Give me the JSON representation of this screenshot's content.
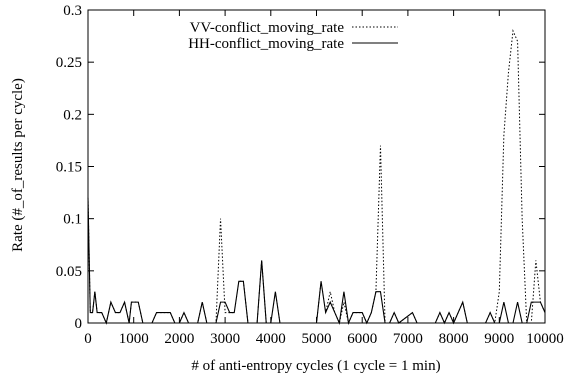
{
  "chart_data": {
    "type": "line",
    "title": "",
    "xlabel": "# of anti-entropy cycles (1 cycle = 1 min)",
    "ylabel": "Rate (#_of_results per cycle)",
    "xlim": [
      0,
      10000
    ],
    "ylim": [
      0,
      0.3
    ],
    "x_ticks": [
      0,
      1000,
      2000,
      3000,
      4000,
      5000,
      6000,
      7000,
      8000,
      9000,
      10000
    ],
    "y_ticks": [
      0,
      0.05,
      0.1,
      0.15,
      0.2,
      0.25,
      0.3
    ],
    "x_tick_labels": [
      "0",
      "1000",
      "2000",
      "3000",
      "4000",
      "5000",
      "6000",
      "7000",
      "8000",
      "9000",
      "10000"
    ],
    "y_tick_labels": [
      "0",
      "0.05",
      "0.1",
      "0.15",
      "0.2",
      "0.25",
      "0.3"
    ],
    "grid": false,
    "legend_position": "top-left",
    "series": [
      {
        "name": "VV-conflict_moving_rate",
        "style": "dotted",
        "color": "#000000",
        "points": [
          [
            0,
            0.12
          ],
          [
            50,
            0.01
          ],
          [
            100,
            0.01
          ],
          [
            150,
            0.03
          ],
          [
            200,
            0.01
          ],
          [
            250,
            0.01
          ],
          [
            300,
            0.01
          ],
          [
            400,
            0
          ],
          [
            500,
            0.02
          ],
          [
            600,
            0.01
          ],
          [
            700,
            0.01
          ],
          [
            800,
            0.02
          ],
          [
            900,
            0
          ],
          [
            950,
            0.02
          ],
          [
            1100,
            0.02
          ],
          [
            1200,
            0
          ],
          [
            1400,
            0
          ],
          [
            1500,
            0.01
          ],
          [
            1600,
            0.01
          ],
          [
            1800,
            0.01
          ],
          [
            1900,
            0
          ],
          [
            2000,
            0
          ],
          [
            2100,
            0.01
          ],
          [
            2200,
            0
          ],
          [
            2400,
            0
          ],
          [
            2500,
            0.02
          ],
          [
            2600,
            0
          ],
          [
            2800,
            0
          ],
          [
            2900,
            0.1
          ],
          [
            3000,
            0.01
          ],
          [
            3100,
            0.01
          ],
          [
            3200,
            0.01
          ],
          [
            3300,
            0.04
          ],
          [
            3400,
            0.04
          ],
          [
            3500,
            0
          ],
          [
            3700,
            0
          ],
          [
            3800,
            0.06
          ],
          [
            3900,
            0
          ],
          [
            4000,
            0
          ],
          [
            4100,
            0.03
          ],
          [
            4200,
            0
          ],
          [
            5000,
            0
          ],
          [
            5100,
            0.04
          ],
          [
            5200,
            0.01
          ],
          [
            5300,
            0.03
          ],
          [
            5400,
            0.01
          ],
          [
            5500,
            0
          ],
          [
            5600,
            0.02
          ],
          [
            5700,
            0
          ],
          [
            5800,
            0.01
          ],
          [
            5900,
            0.01
          ],
          [
            6000,
            0.01
          ],
          [
            6100,
            0
          ],
          [
            6200,
            0.01
          ],
          [
            6300,
            0.03
          ],
          [
            6400,
            0.17
          ],
          [
            6500,
            0
          ],
          [
            6600,
            0
          ],
          [
            6700,
            0.01
          ],
          [
            6800,
            0
          ],
          [
            7100,
            0.01
          ],
          [
            7200,
            0
          ],
          [
            7600,
            0
          ],
          [
            7700,
            0.01
          ],
          [
            7800,
            0
          ],
          [
            7900,
            0.01
          ],
          [
            8000,
            0
          ],
          [
            8200,
            0.02
          ],
          [
            8300,
            0
          ],
          [
            8700,
            0
          ],
          [
            8800,
            0.01
          ],
          [
            8900,
            0
          ],
          [
            9000,
            0.03
          ],
          [
            9100,
            0.18
          ],
          [
            9200,
            0.24
          ],
          [
            9300,
            0.28
          ],
          [
            9400,
            0.27
          ],
          [
            9500,
            0.1
          ],
          [
            9600,
            0
          ],
          [
            9700,
            0
          ],
          [
            9800,
            0.06
          ],
          [
            9900,
            0.02
          ],
          [
            10000,
            0.01
          ]
        ]
      },
      {
        "name": "HH-conflict_moving_rate",
        "style": "solid",
        "color": "#000000",
        "points": [
          [
            0,
            0.12
          ],
          [
            50,
            0.01
          ],
          [
            100,
            0.01
          ],
          [
            150,
            0.03
          ],
          [
            200,
            0.01
          ],
          [
            300,
            0.01
          ],
          [
            400,
            0
          ],
          [
            500,
            0.02
          ],
          [
            600,
            0.01
          ],
          [
            700,
            0.01
          ],
          [
            800,
            0.02
          ],
          [
            900,
            0
          ],
          [
            950,
            0.02
          ],
          [
            1100,
            0.02
          ],
          [
            1200,
            0
          ],
          [
            1400,
            0
          ],
          [
            1500,
            0.01
          ],
          [
            1600,
            0.01
          ],
          [
            1800,
            0.01
          ],
          [
            1900,
            0
          ],
          [
            2000,
            0
          ],
          [
            2100,
            0.01
          ],
          [
            2200,
            0
          ],
          [
            2400,
            0
          ],
          [
            2500,
            0.02
          ],
          [
            2600,
            0
          ],
          [
            2800,
            0
          ],
          [
            2900,
            0.02
          ],
          [
            3000,
            0.02
          ],
          [
            3100,
            0.01
          ],
          [
            3200,
            0.01
          ],
          [
            3300,
            0.04
          ],
          [
            3400,
            0.04
          ],
          [
            3500,
            0
          ],
          [
            3700,
            0
          ],
          [
            3800,
            0.06
          ],
          [
            3900,
            0
          ],
          [
            4000,
            0
          ],
          [
            4100,
            0.03
          ],
          [
            4200,
            0
          ],
          [
            5000,
            0
          ],
          [
            5100,
            0.04
          ],
          [
            5200,
            0.01
          ],
          [
            5300,
            0.02
          ],
          [
            5400,
            0.01
          ],
          [
            5500,
            0
          ],
          [
            5600,
            0.03
          ],
          [
            5700,
            0
          ],
          [
            5800,
            0.01
          ],
          [
            5900,
            0.01
          ],
          [
            6000,
            0.01
          ],
          [
            6100,
            0
          ],
          [
            6200,
            0.01
          ],
          [
            6300,
            0.03
          ],
          [
            6400,
            0.03
          ],
          [
            6500,
            0
          ],
          [
            6600,
            0
          ],
          [
            6700,
            0.01
          ],
          [
            6800,
            0
          ],
          [
            7100,
            0.01
          ],
          [
            7200,
            0
          ],
          [
            7600,
            0
          ],
          [
            7700,
            0.01
          ],
          [
            7800,
            0
          ],
          [
            7900,
            0.01
          ],
          [
            8000,
            0
          ],
          [
            8200,
            0.02
          ],
          [
            8300,
            0
          ],
          [
            8700,
            0
          ],
          [
            8800,
            0.01
          ],
          [
            8900,
            0
          ],
          [
            9000,
            0
          ],
          [
            9100,
            0.02
          ],
          [
            9200,
            0
          ],
          [
            9300,
            0
          ],
          [
            9400,
            0.02
          ],
          [
            9500,
            0
          ],
          [
            9600,
            0
          ],
          [
            9700,
            0.02
          ],
          [
            9800,
            0.02
          ],
          [
            9900,
            0.02
          ],
          [
            10000,
            0.01
          ]
        ]
      }
    ]
  }
}
